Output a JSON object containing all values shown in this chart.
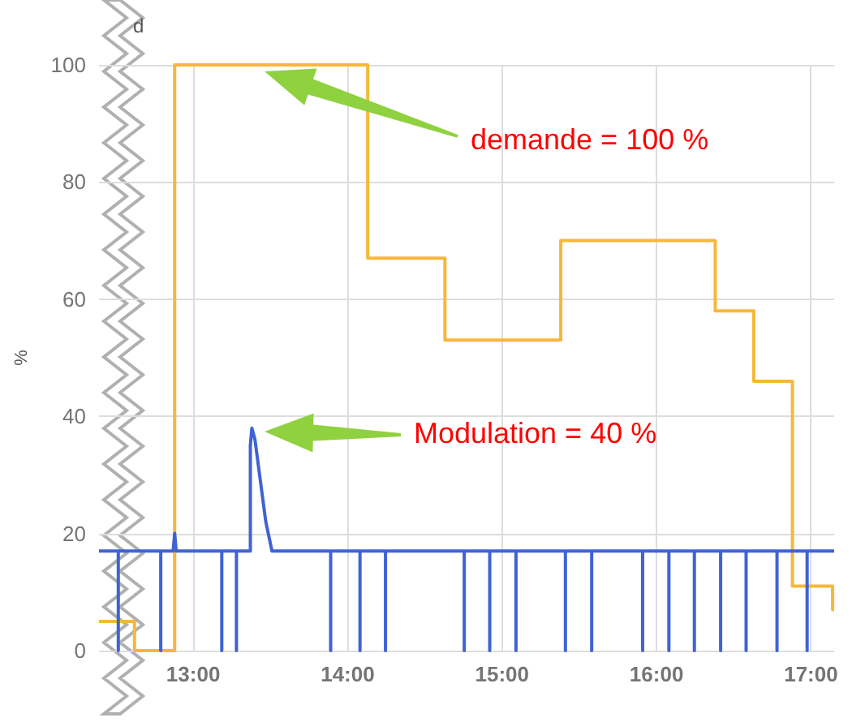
{
  "chart_data": {
    "type": "line",
    "ylabel": "%",
    "xlim": [
      12.39,
      17.15
    ],
    "xticks": [
      {
        "value": 13,
        "label": "13:00"
      },
      {
        "value": 14,
        "label": "14:00"
      },
      {
        "value": 15,
        "label": "15:00"
      },
      {
        "value": 16,
        "label": "16:00"
      },
      {
        "value": 17,
        "label": "17:00"
      }
    ],
    "ylim": [
      0,
      100
    ],
    "yticks": [
      0,
      20,
      40,
      60,
      80,
      100
    ],
    "grid": true,
    "marker": "none",
    "series": [
      {
        "type": "step",
        "color": "#f6b73c",
        "x": [
          12.39,
          12.62,
          12.88,
          14.13,
          14.63,
          15.38,
          16.38,
          16.63,
          16.88,
          17.14,
          17.15
        ],
        "values": [
          5,
          0,
          100,
          67,
          53,
          70,
          58,
          46,
          11,
          7,
          7
        ]
      },
      {
        "type": "line",
        "color": "#3f63d3",
        "x": [
          12.39,
          12.515,
          12.515,
          12.515,
          12.79,
          12.79,
          12.79,
          12.87,
          12.88,
          12.89,
          13.185,
          13.185,
          13.185,
          13.28,
          13.28,
          13.28,
          13.37,
          13.37,
          13.38,
          13.4,
          13.43,
          13.47,
          13.51,
          13.89,
          13.89,
          13.89,
          14.08,
          14.08,
          14.08,
          14.245,
          14.245,
          14.245,
          14.755,
          14.755,
          14.755,
          14.92,
          14.92,
          14.92,
          15.09,
          15.09,
          15.09,
          15.41,
          15.41,
          15.41,
          15.58,
          15.58,
          15.58,
          15.91,
          15.91,
          15.91,
          16.08,
          16.08,
          16.08,
          16.245,
          16.245,
          16.245,
          16.415,
          16.415,
          16.415,
          16.58,
          16.58,
          16.58,
          16.78,
          16.78,
          16.78,
          16.975,
          16.975,
          16.975,
          17.15
        ],
        "values": [
          17,
          17,
          0,
          17,
          17,
          0,
          17,
          17,
          20,
          17,
          17,
          0,
          17,
          17,
          0,
          17,
          17,
          35,
          38,
          36,
          30,
          22,
          17,
          17,
          0,
          17,
          17,
          0,
          17,
          17,
          0,
          17,
          17,
          0,
          17,
          17,
          0,
          17,
          17,
          0,
          17,
          17,
          0,
          17,
          17,
          0,
          17,
          17,
          0,
          17,
          17,
          0,
          17,
          17,
          0,
          17,
          17,
          0,
          17,
          17,
          0,
          17,
          17,
          0,
          17,
          17,
          0,
          17,
          17
        ]
      }
    ],
    "annotations": [
      "d",
      "demande = 100 %",
      "Modulation = 40 %"
    ]
  }
}
